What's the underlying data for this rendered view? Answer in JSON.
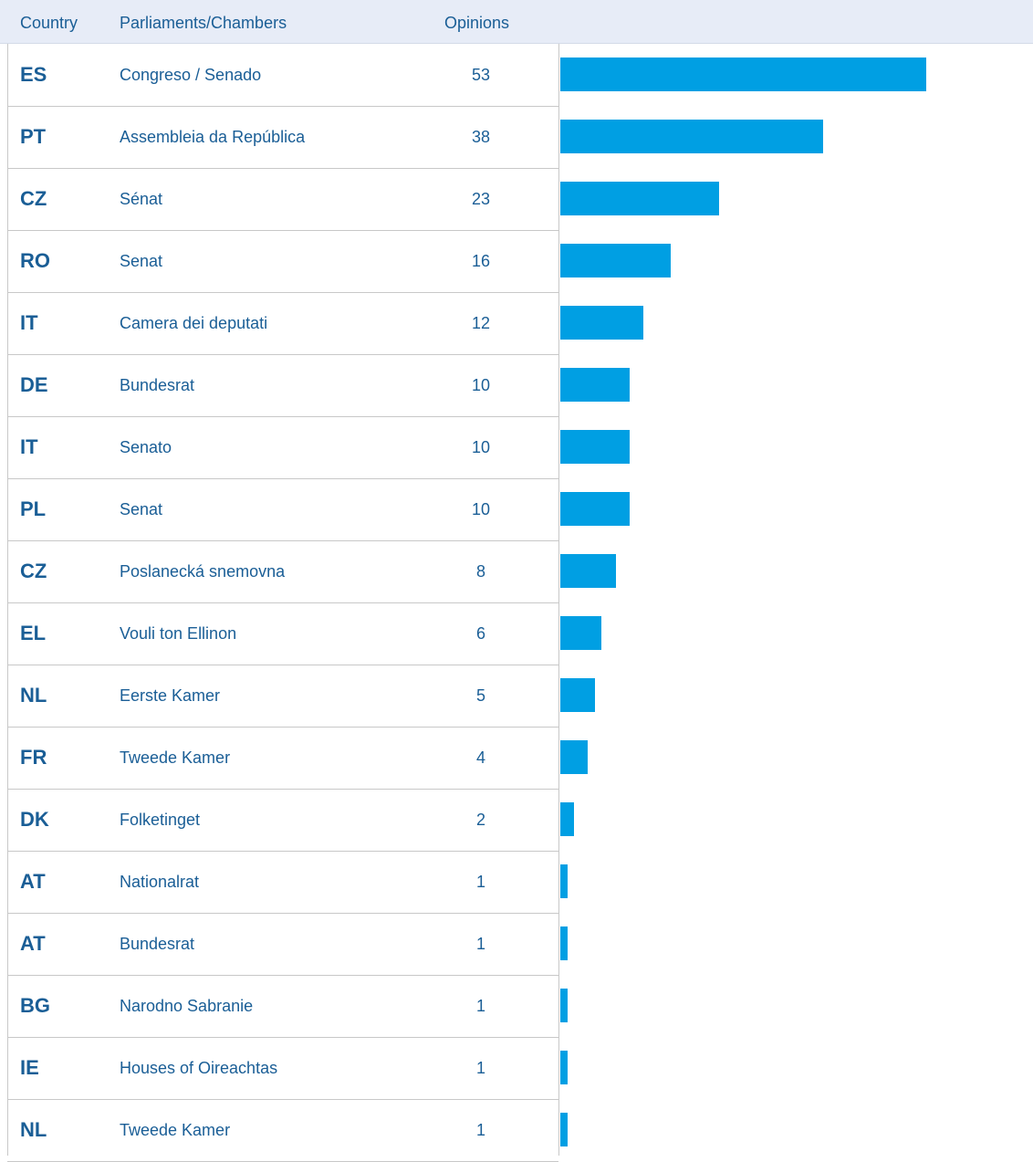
{
  "chart_data": {
    "type": "bar",
    "columns": [
      "Country",
      "Parliaments/Chambers",
      "Opinions"
    ],
    "categories": [
      "ES",
      "PT",
      "CZ",
      "RO",
      "IT",
      "DE",
      "IT",
      "PL",
      "CZ",
      "EL",
      "NL",
      "FR",
      "DK",
      "AT",
      "AT",
      "BG",
      "IE",
      "NL"
    ],
    "chambers": [
      "Congreso / Senado",
      "Assembleia da República",
      "Sénat",
      "Senat",
      "Camera dei deputati",
      "Bundesrat",
      "Senato",
      "Senat",
      "Poslanecká snemovna",
      "Vouli ton Ellinon",
      "Eerste Kamer",
      "Tweede Kamer",
      "Folketinget",
      "Nationalrat",
      "Bundesrat",
      "Narodno Sabranie",
      "Houses of Oireachtas",
      "Tweede Kamer"
    ],
    "values": [
      53,
      38,
      23,
      16,
      12,
      10,
      10,
      10,
      8,
      6,
      5,
      4,
      2,
      1,
      1,
      1,
      1,
      1
    ],
    "color": "#009fe3"
  }
}
